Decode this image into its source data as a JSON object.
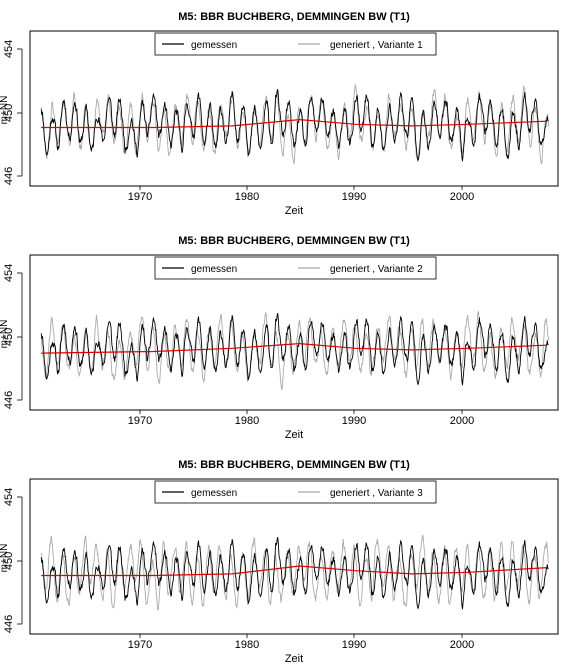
{
  "chart_data": [
    {
      "type": "line",
      "title": "M5: BBR BUCHBERG, DEMMINGEN BW (T1)",
      "xlabel": "Zeit",
      "ylabel": "m+NN",
      "xlim": [
        1961.0,
        2008.0
      ],
      "ylim": [
        445.6,
        455.4
      ],
      "xticks": [
        "1970",
        "1980",
        "1990",
        "2000"
      ],
      "yticks": [
        "446",
        "450",
        "454"
      ],
      "legend_position": "top-center",
      "series": [
        {
          "name": "gemessen",
          "color": "#000000",
          "start": 1962.0,
          "end": 2007.2,
          "seed": 11,
          "amplitude": 1.2
        },
        {
          "name": "generiert , Variante 1",
          "color": "#aaaaaa",
          "start": 1962.0,
          "end": 2007.2,
          "seed": 101,
          "amplitude": 1.35
        },
        {
          "name": "",
          "color": "#dd0000",
          "trend": [
            [
              1962,
              449.3
            ],
            [
              1972,
              449.3
            ],
            [
              1979,
              449.4
            ],
            [
              1985,
              449.8
            ],
            [
              1990,
              449.5
            ],
            [
              1995,
              449.4
            ],
            [
              2000,
              449.5
            ],
            [
              2007,
              449.7
            ]
          ]
        }
      ]
    },
    {
      "type": "line",
      "title": "M5: BBR BUCHBERG, DEMMINGEN BW (T1)",
      "xlabel": "Zeit",
      "ylabel": "m+NN",
      "xlim": [
        1961.0,
        2008.0
      ],
      "ylim": [
        445.6,
        455.4
      ],
      "xticks": [
        "1970",
        "1980",
        "1990",
        "2000"
      ],
      "yticks": [
        "446",
        "450",
        "454"
      ],
      "legend_position": "top-center",
      "series": [
        {
          "name": "gemessen",
          "color": "#000000",
          "start": 1962.0,
          "end": 2007.2,
          "seed": 11,
          "amplitude": 1.2
        },
        {
          "name": "generiert , Variante 2",
          "color": "#aaaaaa",
          "start": 1962.0,
          "end": 2007.2,
          "seed": 202,
          "amplitude": 1.35
        },
        {
          "name": "",
          "color": "#dd0000",
          "trend": [
            [
              1962,
              449.2
            ],
            [
              1972,
              449.3
            ],
            [
              1979,
              449.5
            ],
            [
              1985,
              449.8
            ],
            [
              1990,
              449.5
            ],
            [
              1995,
              449.4
            ],
            [
              2000,
              449.5
            ],
            [
              2007,
              449.7
            ]
          ]
        }
      ]
    },
    {
      "type": "line",
      "title": "M5: BBR BUCHBERG, DEMMINGEN BW (T1)",
      "xlabel": "Zeit",
      "ylabel": "m+NN",
      "xlim": [
        1961.0,
        2008.0
      ],
      "ylim": [
        445.6,
        455.4
      ],
      "xticks": [
        "1970",
        "1980",
        "1990",
        "2000"
      ],
      "yticks": [
        "446",
        "450",
        "454"
      ],
      "legend_position": "top-center",
      "series": [
        {
          "name": "gemessen",
          "color": "#000000",
          "start": 1962.0,
          "end": 2007.2,
          "seed": 11,
          "amplitude": 1.2
        },
        {
          "name": "generiert , Variante 3",
          "color": "#aaaaaa",
          "start": 1962.0,
          "end": 2007.2,
          "seed": 303,
          "amplitude": 1.45
        },
        {
          "name": "",
          "color": "#dd0000",
          "trend": [
            [
              1962,
              449.3
            ],
            [
              1972,
              449.3
            ],
            [
              1979,
              449.4
            ],
            [
              1985,
              449.9
            ],
            [
              1990,
              449.6
            ],
            [
              1995,
              449.4
            ],
            [
              2000,
              449.5
            ],
            [
              2007,
              449.8
            ]
          ]
        }
      ]
    }
  ]
}
